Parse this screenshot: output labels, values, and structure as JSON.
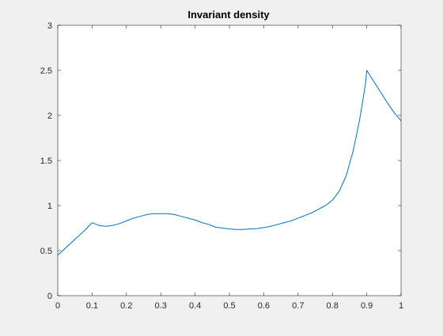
{
  "colors": {
    "figure_background": "#f0f0f0",
    "axes_background": "#ffffff",
    "axes_color": "#262626",
    "series_color": "#0072bd"
  },
  "chart_data": {
    "type": "line",
    "title": "Invariant density",
    "xlabel": "",
    "ylabel": "",
    "xlim": [
      0,
      1
    ],
    "ylim": [
      0,
      3
    ],
    "grid": false,
    "legend": "none",
    "xticks": [
      0,
      0.1,
      0.2,
      0.3,
      0.4,
      0.5,
      0.6,
      0.7,
      0.8,
      0.9,
      1
    ],
    "xtick_labels": [
      "0",
      "0.1",
      "0.2",
      "0.3",
      "0.4",
      "0.5",
      "0.6",
      "0.7",
      "0.8",
      "0.9",
      "1"
    ],
    "yticks": [
      0,
      0.5,
      1,
      1.5,
      2,
      2.5,
      3
    ],
    "ytick_labels": [
      "0",
      "0.5",
      "1",
      "1.5",
      "2",
      "2.5",
      "3"
    ],
    "series": [
      {
        "x": [
          0,
          0.02,
          0.04,
          0.06,
          0.08,
          0.1,
          0.12,
          0.14,
          0.16,
          0.18,
          0.2,
          0.22,
          0.24,
          0.26,
          0.28,
          0.3,
          0.32,
          0.34,
          0.36,
          0.38,
          0.4,
          0.42,
          0.44,
          0.46,
          0.48,
          0.5,
          0.52,
          0.54,
          0.56,
          0.58,
          0.6,
          0.62,
          0.64,
          0.66,
          0.68,
          0.7,
          0.72,
          0.74,
          0.76,
          0.78,
          0.8,
          0.82,
          0.84,
          0.86,
          0.87,
          0.88,
          0.89,
          0.895,
          0.899,
          0.9,
          0.92,
          0.94,
          0.96,
          0.98,
          1
        ],
        "y": [
          0.45,
          0.52,
          0.59,
          0.66,
          0.73,
          0.81,
          0.78,
          0.77,
          0.78,
          0.8,
          0.83,
          0.86,
          0.88,
          0.9,
          0.91,
          0.91,
          0.91,
          0.9,
          0.88,
          0.86,
          0.84,
          0.81,
          0.79,
          0.76,
          0.75,
          0.74,
          0.735,
          0.735,
          0.74,
          0.745,
          0.755,
          0.77,
          0.79,
          0.81,
          0.83,
          0.86,
          0.89,
          0.92,
          0.96,
          1.0,
          1.06,
          1.16,
          1.33,
          1.6,
          1.78,
          1.97,
          2.2,
          2.32,
          2.45,
          2.5,
          2.38,
          2.26,
          2.14,
          2.03,
          1.94
        ]
      }
    ]
  }
}
